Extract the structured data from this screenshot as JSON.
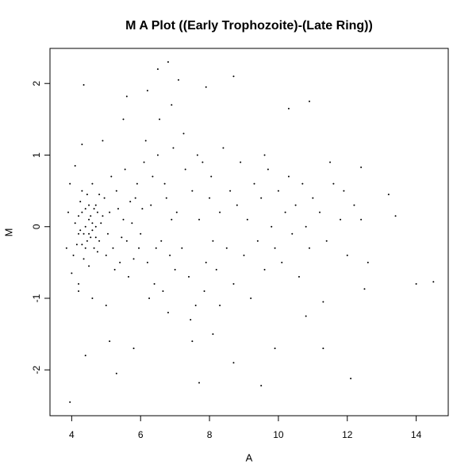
{
  "chart_data": {
    "type": "scatter",
    "title": "M A Plot ((Early Trophozoite)-(Late Ring))",
    "x_label": "A",
    "y_label": "M",
    "xlim": [
      3.37,
      14.93
    ],
    "ylim": [
      -2.64,
      2.49
    ],
    "xticks": [
      4,
      6,
      8,
      10,
      12,
      14
    ],
    "yticks": [
      -2,
      -1,
      0,
      1,
      2
    ],
    "grid": false,
    "color": "#000000",
    "x": [
      4.1,
      4.2,
      4.3,
      4.4,
      4.5,
      4.6,
      4.7,
      4.8,
      4.9,
      5.0,
      4.15,
      4.25,
      4.35,
      4.45,
      4.55,
      4.65,
      4.75,
      4.85,
      4.95,
      5.05,
      4.05,
      4.3,
      4.5,
      4.6,
      4.4,
      4.5,
      4.7,
      4.2,
      4.35,
      4.8,
      5.1,
      5.2,
      5.3,
      5.4,
      5.5,
      5.6,
      5.7,
      5.8,
      5.9,
      6.0,
      5.15,
      5.25,
      5.35,
      5.45,
      5.55,
      5.65,
      5.75,
      5.85,
      5.95,
      6.05,
      3.9,
      3.85,
      3.95,
      4.0,
      4.1,
      4.2,
      4.3,
      4.6,
      4.9,
      5.0,
      6.1,
      6.2,
      6.3,
      6.4,
      6.5,
      6.6,
      6.7,
      6.8,
      6.9,
      7.0,
      6.15,
      6.25,
      6.35,
      6.45,
      6.55,
      6.65,
      6.75,
      6.85,
      6.95,
      7.05,
      7.2,
      7.3,
      7.4,
      7.5,
      7.6,
      7.7,
      7.8,
      7.9,
      8.0,
      8.1,
      7.25,
      7.45,
      7.65,
      7.85,
      8.05,
      8.2,
      8.3,
      8.4,
      8.5,
      8.6,
      8.7,
      8.8,
      8.9,
      9.0,
      9.1,
      9.2,
      9.3,
      9.4,
      9.5,
      9.6,
      9.7,
      9.8,
      9.9,
      10.0,
      10.1,
      10.2,
      10.3,
      10.4,
      10.5,
      10.6,
      10.7,
      10.8,
      10.9,
      11.0,
      11.2,
      11.4,
      11.6,
      11.8,
      12.0,
      12.2,
      12.4,
      12.6,
      11.5,
      11.9,
      3.95,
      4.35,
      6.8,
      8.7,
      6.5,
      14.5,
      14.0,
      12.1,
      9.5,
      5.6,
      10.9,
      12.4,
      13.2,
      13.4,
      11.3,
      11.3,
      9.9,
      7.7,
      8.7,
      5.3,
      4.4,
      4.2,
      7.9,
      10.3,
      12.5,
      5.8,
      6.2,
      7.1,
      7.5,
      8.1,
      5.1,
      9.6,
      10.8,
      8.3,
      6.9,
      5.5,
      4.45,
      4.55,
      4.25,
      4.65,
      4.75,
      4.4,
      4.6,
      4.3,
      4.5,
      4.7
    ],
    "y": [
      0.05,
      -0.1,
      0.2,
      -0.3,
      0.1,
      -0.05,
      0.3,
      -0.2,
      0.15,
      -0.4,
      -0.25,
      0.35,
      -0.45,
      0.45,
      -0.15,
      0.25,
      -0.35,
      0.05,
      0.4,
      -0.1,
      -0.4,
      0.5,
      -0.55,
      0.6,
      0.0,
      0.3,
      0.0,
      0.15,
      -0.1,
      0.45,
      0.2,
      -0.3,
      0.5,
      -0.5,
      0.1,
      -0.2,
      0.35,
      -0.45,
      0.6,
      -0.1,
      0.7,
      -0.6,
      0.25,
      -0.15,
      0.8,
      -0.7,
      0.05,
      0.4,
      -0.3,
      0.25,
      0.2,
      -0.3,
      0.6,
      -0.65,
      0.85,
      -0.8,
      1.15,
      -1.0,
      1.2,
      -1.1,
      0.9,
      -0.5,
      0.3,
      -0.8,
      1.0,
      -0.2,
      0.6,
      -1.2,
      0.1,
      -0.6,
      1.2,
      -1.0,
      0.7,
      -0.3,
      1.5,
      -0.9,
      0.4,
      -0.4,
      1.1,
      0.2,
      -0.3,
      0.8,
      -0.7,
      0.5,
      -1.1,
      0.1,
      0.9,
      -0.5,
      0.4,
      -0.2,
      1.3,
      -1.3,
      1.0,
      -0.9,
      0.7,
      -0.6,
      0.2,
      1.1,
      -0.3,
      0.5,
      -0.8,
      0.3,
      0.9,
      -0.4,
      0.1,
      -1.0,
      0.6,
      -0.2,
      0.4,
      -0.6,
      0.8,
      0.0,
      -0.3,
      0.5,
      -0.5,
      0.2,
      0.7,
      -0.1,
      0.3,
      -0.7,
      0.6,
      0.0,
      -0.3,
      0.4,
      0.2,
      -0.2,
      0.6,
      0.1,
      -0.4,
      0.3,
      0.1,
      -0.5,
      0.9,
      0.5,
      -2.45,
      1.98,
      2.3,
      2.1,
      2.2,
      -0.77,
      -0.8,
      -2.12,
      -2.22,
      1.82,
      1.75,
      0.83,
      0.45,
      0.15,
      -1.05,
      -1.7,
      -1.7,
      -2.18,
      -1.9,
      -2.05,
      -1.8,
      -0.9,
      1.95,
      1.65,
      -0.87,
      -1.7,
      1.9,
      2.05,
      -1.6,
      -1.5,
      -1.6,
      1.0,
      -1.25,
      -1.1,
      1.7,
      1.5,
      -0.2,
      0.15,
      -0.05,
      -0.3,
      0.2,
      0.25,
      0.05,
      -0.25,
      -0.1,
      -0.15
    ]
  }
}
